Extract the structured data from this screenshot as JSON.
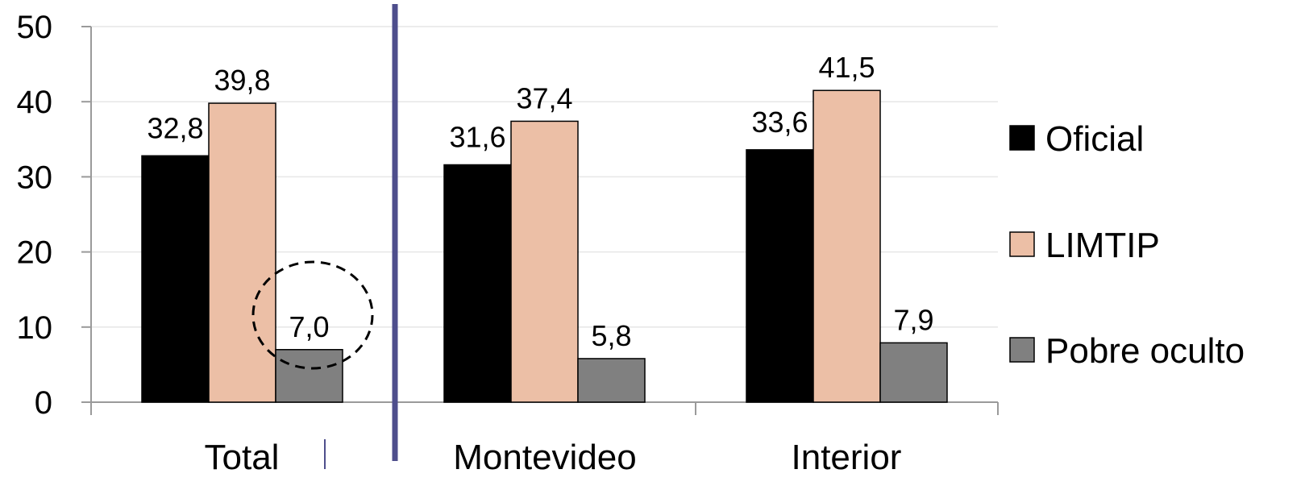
{
  "chart_data": {
    "type": "bar",
    "categories": [
      "Total",
      "Montevideo",
      "Interior"
    ],
    "series": [
      {
        "name": "Oficial",
        "values": [
          32.8,
          31.6,
          33.6
        ],
        "labels": [
          "32,8",
          "31,6",
          "33,6"
        ],
        "color": "#000000"
      },
      {
        "name": "LIMTIP",
        "values": [
          39.8,
          37.4,
          41.5
        ],
        "labels": [
          "39,8",
          "37,4",
          "41,5"
        ],
        "color": "#ecbfa6"
      },
      {
        "name": "Pobre oculto",
        "values": [
          7.0,
          5.8,
          7.9
        ],
        "labels": [
          "7,0",
          "5,8",
          "7,9"
        ],
        "color": "#808080"
      }
    ],
    "ylim": [
      0,
      50
    ],
    "yticks": [
      0,
      10,
      20,
      30,
      40,
      50
    ],
    "ytick_labels": [
      "0",
      "10",
      "20",
      "30",
      "40",
      "50"
    ],
    "grid": true,
    "legend_position": "right",
    "title": "",
    "xlabel": "",
    "ylabel": "",
    "annotations": {
      "divider_color": "#4e4e8c",
      "dashed_circle_around": "Total / Pobre oculto"
    }
  }
}
